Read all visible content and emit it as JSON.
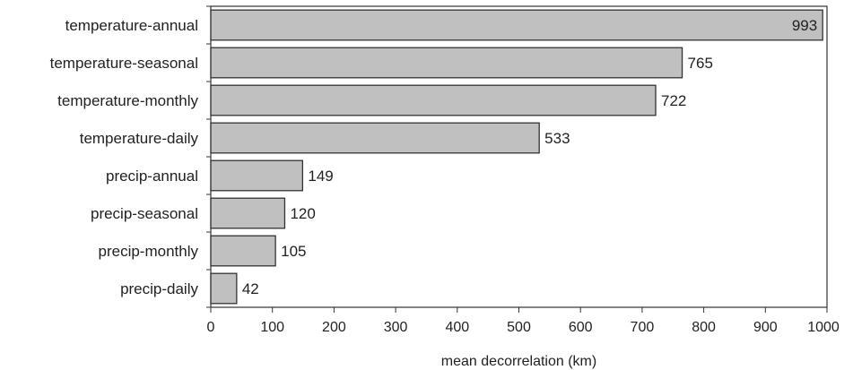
{
  "chart_data": {
    "type": "bar",
    "orientation": "horizontal",
    "title": "",
    "xlabel": "mean decorrelation (km)",
    "ylabel": "",
    "xlim": [
      0,
      1000
    ],
    "xticks": [
      0,
      100,
      200,
      300,
      400,
      500,
      600,
      700,
      800,
      900,
      1000
    ],
    "categories": [
      "temperature-annual",
      "temperature-seasonal",
      "temperature-monthly",
      "temperature-daily",
      "precip-annual",
      "precip-seasonal",
      "precip-monthly",
      "precip-daily"
    ],
    "values": [
      993,
      765,
      722,
      533,
      149,
      120,
      105,
      42
    ],
    "data_labels": [
      "993",
      "765",
      "722",
      "533",
      "149",
      "120",
      "105",
      "42"
    ],
    "bar_color": "#c0c0c0",
    "bar_edge_color": "#333333",
    "grid": false,
    "legend": "none"
  }
}
